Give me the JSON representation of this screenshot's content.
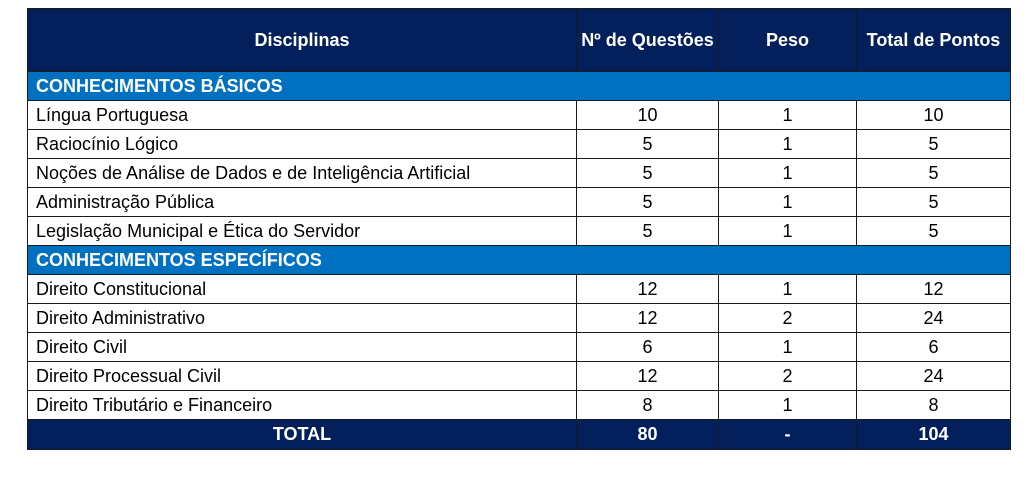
{
  "colors": {
    "header_bg": "#03205c",
    "section_bg": "#0070c0",
    "total_bg": "#03205c",
    "text_light": "#ffffff"
  },
  "table": {
    "headers": [
      "Disciplinas",
      "Nº de Questões",
      "Peso",
      "Total de Pontos"
    ],
    "sections": [
      {
        "title": "CONHECIMENTOS BÁSICOS",
        "rows": [
          {
            "disciplina": "Língua Portuguesa",
            "questoes": "10",
            "peso": "1",
            "pontos": "10"
          },
          {
            "disciplina": "Raciocínio Lógico",
            "questoes": "5",
            "peso": "1",
            "pontos": "5"
          },
          {
            "disciplina": "Noções de Análise de Dados e de Inteligência Artificial",
            "questoes": "5",
            "peso": "1",
            "pontos": "5"
          },
          {
            "disciplina": "Administração Pública",
            "questoes": "5",
            "peso": "1",
            "pontos": "5"
          },
          {
            "disciplina": "Legislação Municipal e Ética do Servidor",
            "questoes": "5",
            "peso": "1",
            "pontos": "5"
          }
        ]
      },
      {
        "title": "CONHECIMENTOS ESPECÍFICOS",
        "rows": [
          {
            "disciplina": "Direito Constitucional",
            "questoes": "12",
            "peso": "1",
            "pontos": "12"
          },
          {
            "disciplina": "Direito Administrativo",
            "questoes": "12",
            "peso": "2",
            "pontos": "24"
          },
          {
            "disciplina": "Direito Civil",
            "questoes": "6",
            "peso": "1",
            "pontos": "6"
          },
          {
            "disciplina": "Direito Processual Civil",
            "questoes": "12",
            "peso": "2",
            "pontos": "24"
          },
          {
            "disciplina": "Direito Tributário e Financeiro",
            "questoes": "8",
            "peso": "1",
            "pontos": "8"
          }
        ]
      }
    ],
    "total": {
      "label": "TOTAL",
      "questoes": "80",
      "peso": "-",
      "pontos": "104"
    }
  }
}
